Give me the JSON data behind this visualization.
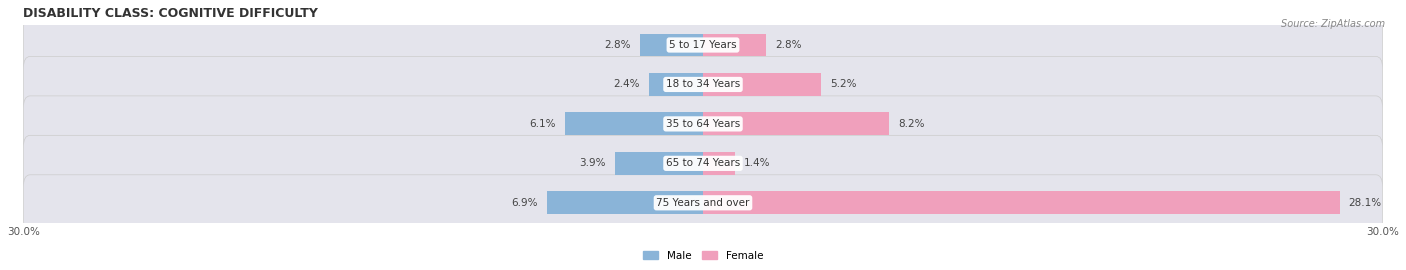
{
  "title": "DISABILITY CLASS: COGNITIVE DIFFICULTY",
  "source_text": "Source: ZipAtlas.com",
  "categories": [
    "5 to 17 Years",
    "18 to 34 Years",
    "35 to 64 Years",
    "65 to 74 Years",
    "75 Years and over"
  ],
  "male_values": [
    2.8,
    2.4,
    6.1,
    3.9,
    6.9
  ],
  "female_values": [
    2.8,
    5.2,
    8.2,
    1.4,
    28.1
  ],
  "male_color": "#8ab4d8",
  "female_color": "#f0a0bc",
  "male_label": "Male",
  "female_label": "Female",
  "xlim": 30.0,
  "bar_height": 0.58,
  "row_bg_color": "#e4e4ec",
  "title_fontsize": 9.0,
  "label_fontsize": 7.5,
  "tick_fontsize": 7.5,
  "source_fontsize": 7.0
}
